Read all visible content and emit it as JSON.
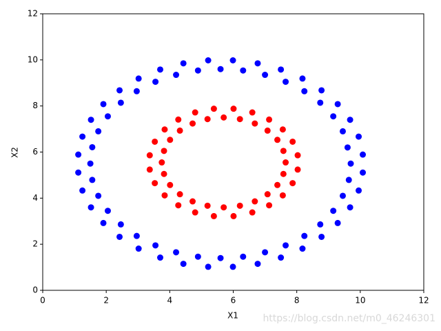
{
  "chart_data": {
    "type": "scatter",
    "x_label": "X1",
    "y_label": "X2",
    "watermark": "https://blog.csdn.net/m0_46246301",
    "xlim": [
      0,
      12
    ],
    "ylim": [
      0,
      12
    ],
    "xticks": [
      0,
      2,
      4,
      6,
      8,
      10,
      12
    ],
    "yticks": [
      0,
      2,
      4,
      6,
      8,
      10,
      12
    ],
    "series": [
      {
        "color": "#0000ff",
        "x": [
          9.7,
          9.6,
          9.45,
          9.15,
          8.74,
          8.24,
          7.65,
          7.0,
          6.31,
          5.6,
          4.89,
          4.2,
          3.55,
          2.96,
          2.46,
          2.05,
          1.75,
          1.56,
          1.5,
          1.56,
          1.75,
          2.05,
          2.46,
          2.96,
          3.55,
          4.2,
          4.89,
          5.6,
          6.31,
          7.0,
          7.65,
          8.24,
          8.74,
          9.15,
          9.45,
          9.64,
          10.08,
          9.95,
          9.68,
          9.29,
          8.78,
          8.18,
          7.5,
          6.77,
          5.99,
          5.21,
          4.43,
          3.7,
          3.02,
          2.42,
          1.91,
          1.52,
          1.25,
          1.12,
          1.12,
          1.25,
          1.52,
          1.91,
          2.42,
          3.02,
          3.7,
          4.43,
          5.21,
          5.99,
          6.77,
          7.5,
          8.18,
          8.78,
          9.29,
          9.68,
          9.95,
          10.08
        ],
        "values": [
          5.5,
          6.2,
          6.9,
          7.55,
          8.14,
          8.64,
          9.05,
          9.35,
          9.54,
          9.6,
          9.54,
          9.35,
          9.05,
          8.64,
          8.14,
          7.55,
          6.9,
          6.21,
          5.5,
          4.79,
          4.1,
          3.45,
          2.86,
          2.36,
          1.95,
          1.65,
          1.46,
          1.4,
          1.46,
          1.65,
          1.95,
          2.36,
          2.86,
          3.45,
          4.1,
          4.79,
          5.89,
          6.67,
          7.4,
          8.08,
          8.68,
          9.19,
          9.58,
          9.85,
          9.98,
          9.98,
          9.85,
          9.58,
          9.19,
          8.68,
          8.08,
          7.4,
          6.67,
          5.89,
          5.11,
          4.33,
          3.6,
          2.92,
          2.32,
          1.81,
          1.42,
          1.15,
          1.02,
          1.02,
          1.15,
          1.42,
          1.81,
          2.32,
          2.92,
          3.6,
          4.33,
          5.11
        ]
      },
      {
        "color": "#ff0000",
        "x": [
          7.65,
          7.58,
          7.39,
          7.08,
          6.68,
          6.21,
          5.7,
          5.19,
          4.72,
          4.32,
          4.01,
          3.82,
          3.75,
          3.82,
          4.01,
          4.32,
          4.72,
          5.19,
          5.7,
          6.21,
          6.68,
          7.08,
          7.39,
          7.58,
          8.03,
          7.87,
          7.56,
          7.13,
          6.6,
          6.01,
          5.39,
          4.8,
          4.27,
          3.84,
          3.53,
          3.37,
          3.37,
          3.53,
          3.84,
          4.27,
          4.8,
          5.39,
          6.01,
          6.6,
          7.13,
          7.56,
          7.87,
          8.03
        ],
        "values": [
          5.55,
          6.05,
          6.53,
          6.93,
          7.24,
          7.43,
          7.5,
          7.43,
          7.24,
          6.93,
          6.53,
          6.05,
          5.55,
          5.05,
          4.57,
          4.17,
          3.86,
          3.67,
          3.6,
          3.67,
          3.86,
          4.17,
          4.57,
          5.05,
          5.86,
          6.45,
          6.98,
          7.41,
          7.72,
          7.88,
          7.88,
          7.72,
          7.41,
          6.98,
          6.45,
          5.86,
          5.24,
          4.65,
          4.12,
          3.69,
          3.38,
          3.22,
          3.22,
          3.38,
          3.69,
          4.12,
          4.65,
          5.24
        ]
      }
    ]
  }
}
